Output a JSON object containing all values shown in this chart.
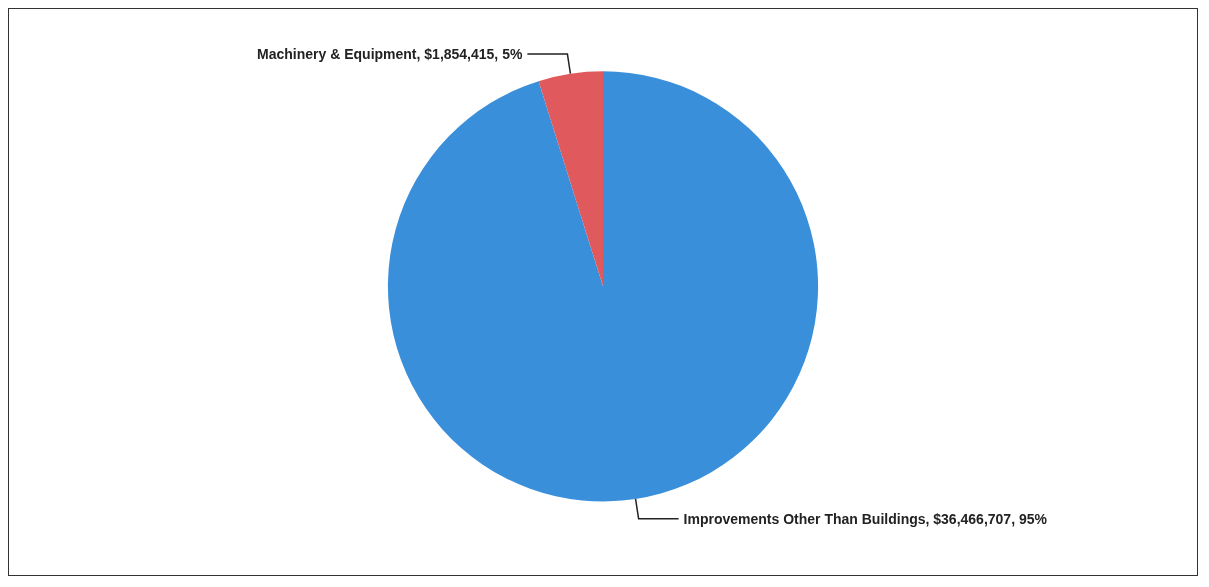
{
  "chart_data": {
    "type": "pie",
    "categories": [
      "Improvements Other Than Buildings",
      "Machinery & Equipment"
    ],
    "values": [
      36466707,
      1854415
    ],
    "colors": [
      "#3a8fda",
      "#e0595c"
    ],
    "value_labels": [
      "$36,466,707, 95%",
      "$1,854,415, 5%"
    ],
    "legend": false
  }
}
